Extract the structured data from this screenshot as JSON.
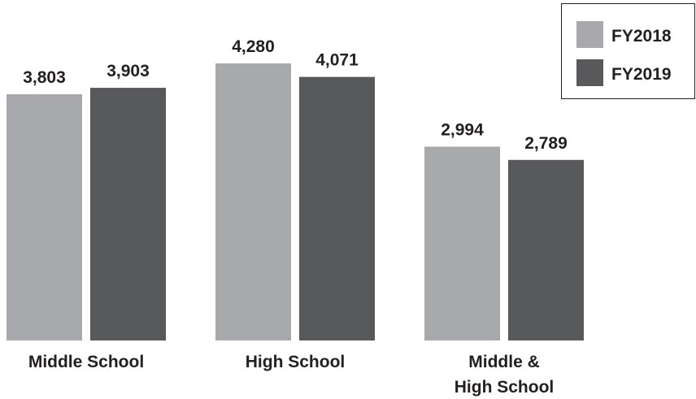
{
  "chart_data": {
    "type": "bar",
    "categories": [
      "Middle School",
      "High School",
      "Middle & High School"
    ],
    "category_lines": [
      [
        "Middle School"
      ],
      [
        "High School"
      ],
      [
        "Middle &",
        "High School"
      ]
    ],
    "series": [
      {
        "name": "FY2018",
        "values": [
          3803,
          4280,
          2994
        ],
        "labels": [
          "3,803",
          "4,280",
          "2,994"
        ],
        "color": "#a7a9ac"
      },
      {
        "name": "FY2019",
        "values": [
          3903,
          4071,
          2789
        ],
        "labels": [
          "3,903",
          "4,071",
          "2,789"
        ],
        "color": "#58595b"
      }
    ],
    "title": "",
    "xlabel": "",
    "ylabel": "",
    "ylim": [
      0,
      4280
    ],
    "grid": false,
    "legend_position": "top-right"
  }
}
